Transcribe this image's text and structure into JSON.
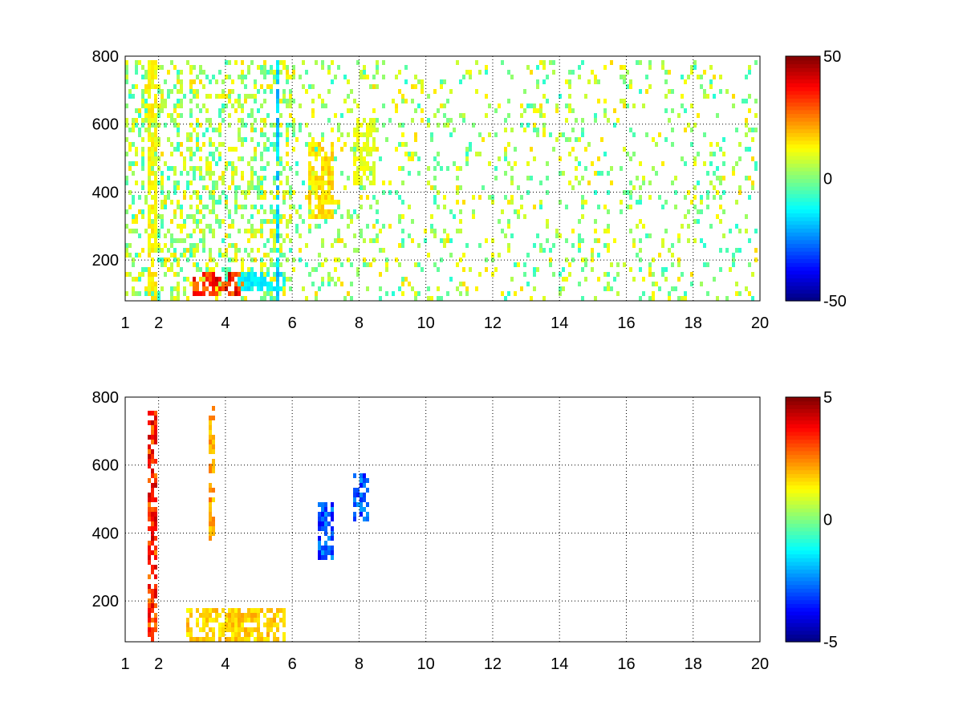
{
  "chart_data": [
    {
      "type": "heatmap",
      "title": "",
      "xlabel": "",
      "ylabel": "",
      "xlim": [
        1,
        20
      ],
      "ylim": [
        80,
        800
      ],
      "x_ticks": [
        1,
        2,
        4,
        6,
        8,
        10,
        12,
        14,
        16,
        18,
        20
      ],
      "y_ticks": [
        200,
        400,
        600,
        800
      ],
      "grid": true,
      "colormap": "jet",
      "colorbar": {
        "min": -50,
        "max": 50,
        "ticks": [
          -50,
          0,
          50
        ]
      },
      "description_regions": [
        {
          "x": [
            3.0,
            4.6
          ],
          "y": [
            90,
            170
          ],
          "value": 40
        },
        {
          "x": [
            4.4,
            5.8
          ],
          "y": [
            110,
            160
          ],
          "value": -15
        },
        {
          "x": [
            6.5,
            7.3
          ],
          "y": [
            330,
            560
          ],
          "value": 18
        },
        {
          "x": [
            7.8,
            8.5
          ],
          "y": [
            420,
            620
          ],
          "value": 12
        },
        {
          "x": [
            1.7,
            2.0
          ],
          "y": [
            80,
            800
          ],
          "value": 15
        },
        {
          "x": [
            5.55,
            5.65
          ],
          "y": [
            80,
            800
          ],
          "value": -20
        }
      ]
    },
    {
      "type": "heatmap",
      "title": "",
      "xlabel": "",
      "ylabel": "",
      "xlim": [
        1,
        20
      ],
      "ylim": [
        80,
        800
      ],
      "x_ticks": [
        1,
        2,
        4,
        6,
        8,
        10,
        12,
        14,
        16,
        18,
        20
      ],
      "y_ticks": [
        200,
        400,
        600,
        800
      ],
      "grid": true,
      "colormap": "jet",
      "colorbar": {
        "min": -5,
        "max": 5,
        "ticks": [
          -5,
          0,
          5
        ]
      },
      "description_regions": [
        {
          "x": [
            2.8,
            5.8
          ],
          "y": [
            80,
            180
          ],
          "value": 2
        },
        {
          "x": [
            6.8,
            7.3
          ],
          "y": [
            330,
            500
          ],
          "value": -3.5
        },
        {
          "x": [
            7.8,
            8.3
          ],
          "y": [
            440,
            580
          ],
          "value": -3.5
        },
        {
          "x": [
            1.7,
            1.95
          ],
          "y": [
            80,
            770
          ],
          "value": 4
        },
        {
          "x": [
            3.5,
            3.7
          ],
          "y": [
            380,
            780
          ],
          "value": 2.5
        }
      ]
    }
  ]
}
